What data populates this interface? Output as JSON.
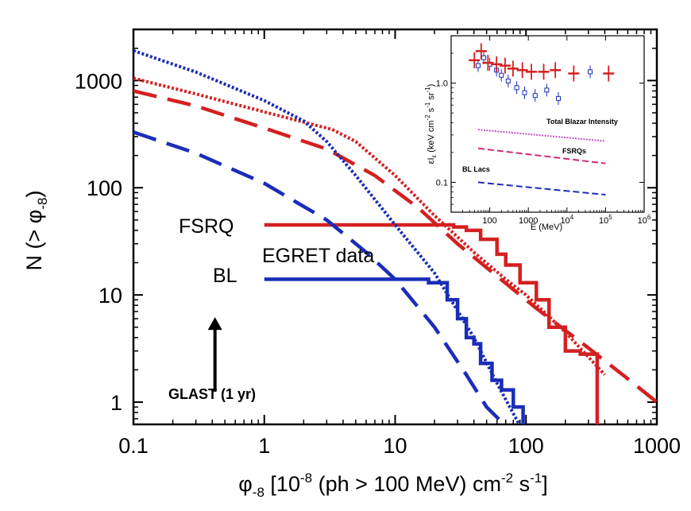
{
  "chart_data": [
    {
      "type": "line",
      "xlabel": "φ-8 [10-8 (ph > 100 MeV) cm-2 s-1]",
      "xlabel_parts": {
        "phi": "φ",
        "phi_sub": "-8",
        "pre": "[10",
        "exp1": "-8",
        "mid": " (ph > 100 MeV) cm",
        "exp2": "-2",
        "mid2": " s",
        "exp3": "-1",
        "post": "]"
      },
      "ylabel": "N (> φ-8)",
      "ylabel_parts": {
        "pre": "N (> ",
        "phi": "φ",
        "sub": "-8",
        "post": ")"
      },
      "x_scale": "log",
      "y_scale": "log",
      "xlim": [
        0.1,
        1000
      ],
      "ylim": [
        0.62,
        3000
      ],
      "x_ticks": [
        0.1,
        1,
        10,
        100,
        1000
      ],
      "x_tick_labels": [
        "0.1",
        "1",
        "10",
        "100",
        "1000"
      ],
      "y_ticks": [
        1,
        10,
        100,
        1000
      ],
      "y_tick_labels": [
        "1",
        "10",
        "100",
        "1000"
      ],
      "colors": {
        "fsrq": "#d42020",
        "bl": "#1a2db8"
      },
      "series": [
        {
          "group": "fsrq",
          "style": "dotted",
          "x": [
            0.1,
            0.3,
            1,
            2,
            3.3,
            5,
            10,
            20,
            40,
            70,
            100,
            200,
            400
          ],
          "y": [
            1050,
            750,
            510,
            410,
            350,
            270,
            130,
            55,
            25,
            14,
            10,
            4.5,
            1.8
          ]
        },
        {
          "group": "fsrq",
          "style": "dashed",
          "x": [
            0.1,
            0.3,
            1,
            3,
            7,
            15,
            30,
            60,
            120,
            300,
            600,
            1000
          ],
          "y": [
            800,
            580,
            360,
            230,
            130,
            65,
            30,
            15,
            7.5,
            3.2,
            1.65,
            1.0
          ]
        },
        {
          "group": "fsrq",
          "style": "step",
          "x": [
            1,
            5,
            10,
            20,
            28,
            35,
            45,
            60,
            70,
            90,
            120,
            150,
            200,
            260,
            350
          ],
          "y": [
            45,
            45,
            45,
            45,
            43,
            40,
            33,
            24,
            19,
            13,
            9,
            5,
            3,
            2.8,
            0.6
          ]
        },
        {
          "group": "bl",
          "style": "dotted",
          "x": [
            0.1,
            0.3,
            1,
            2,
            3,
            5,
            10,
            20,
            40,
            60,
            90
          ],
          "y": [
            1900,
            1200,
            650,
            420,
            270,
            130,
            45,
            16,
            4,
            1.5,
            0.6
          ]
        },
        {
          "group": "bl",
          "style": "dashed",
          "x": [
            0.1,
            0.3,
            1,
            3,
            6,
            10,
            20,
            35,
            50,
            70
          ],
          "y": [
            330,
            210,
            110,
            50,
            25,
            14,
            5,
            1.8,
            0.9,
            0.6
          ]
        },
        {
          "group": "bl",
          "style": "step",
          "x": [
            1,
            5,
            8,
            14,
            18,
            25,
            30,
            35,
            40,
            45,
            55,
            65,
            80,
            95
          ],
          "y": [
            14,
            14,
            14,
            14,
            13,
            9,
            6,
            4,
            3.5,
            2.3,
            1.6,
            1.3,
            0.9,
            0.6
          ]
        }
      ],
      "annotations": {
        "fsrq_label": "FSRQ",
        "bl_label": "BL",
        "egret_label": "EGRET data",
        "glast_label": "GLAST (1 yr)"
      },
      "glast_arrow": {
        "x": 0.42,
        "y_from": 1.25,
        "y_to": 6.2
      }
    },
    {
      "type": "scatter",
      "role": "inset",
      "xlabel": "E (MeV)",
      "ylabel": "εIε (keV cm-2 s-1 sr-1)",
      "ylabel_parts": {
        "eps": "εI",
        "sub": "ε",
        "open": " (keV cm",
        "e1": "-2",
        "s": " s",
        "e2": "-1",
        "sr": " sr",
        "e3": "-1",
        "close": ")"
      },
      "x_scale": "log",
      "y_scale": "log",
      "xlim": [
        10,
        1000000
      ],
      "ylim": [
        0.05,
        3
      ],
      "x_ticks": [
        100,
        1000,
        10000,
        100000,
        1000000
      ],
      "x_tick_labels": [
        "100",
        "1000",
        "10",
        "10",
        "10"
      ],
      "x_tick_exps": [
        "",
        "",
        "4",
        "5",
        "6"
      ],
      "y_ticks": [
        0.1,
        1.0
      ],
      "y_tick_labels": [
        "0.1",
        "1.0"
      ],
      "series_labels": {
        "total": "Total Blazar Intensity",
        "fsrq": "FSRQs",
        "bl": "BL Lacs"
      },
      "colors": {
        "total": "#c050c8",
        "fsrq": "#d02a7a",
        "bl": "#1a2db8",
        "red": "#d42020"
      },
      "lines": [
        {
          "key": "total",
          "x": [
            50,
            100000
          ],
          "y": [
            0.34,
            0.26
          ]
        },
        {
          "key": "fsrq",
          "x": [
            50,
            100000
          ],
          "y": [
            0.22,
            0.155
          ]
        },
        {
          "key": "bl",
          "x": [
            50,
            100000
          ],
          "y": [
            0.1,
            0.075
          ]
        }
      ],
      "red_points": {
        "x": [
          40,
          60,
          90,
          150,
          250,
          400,
          700,
          1200,
          2500,
          5000,
          15000,
          120000
        ],
        "y": [
          1.7,
          2.1,
          1.6,
          1.55,
          1.5,
          1.4,
          1.35,
          1.3,
          1.3,
          1.35,
          1.25,
          1.25
        ]
      },
      "blue_points": {
        "x": [
          50,
          70,
          100,
          150,
          200,
          300,
          500,
          800,
          1500,
          3000,
          6000,
          40000
        ],
        "y": [
          1.5,
          1.8,
          1.55,
          1.35,
          1.2,
          1.05,
          0.9,
          0.8,
          0.75,
          0.85,
          0.7,
          1.3
        ]
      }
    }
  ]
}
